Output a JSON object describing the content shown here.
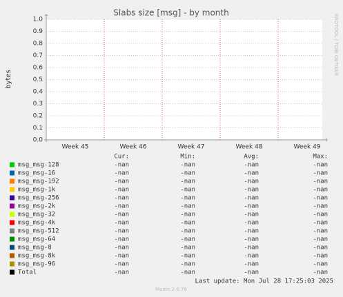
{
  "chart_data": {
    "type": "line",
    "title": "Slabs size [msg] - by month",
    "y_label": "bytes",
    "side_note": "RRDTOOL / TOBI OETIKER",
    "categories": [
      "Week 45",
      "Week 46",
      "Week 47",
      "Week 48",
      "Week 49"
    ],
    "ylim": [
      0,
      1
    ],
    "yticks": [
      {
        "value": 0,
        "label": "0.0"
      },
      0.1,
      0.2,
      0.3,
      0.4,
      0.5,
      0.6,
      0.7,
      0.8,
      0.9,
      {
        "value": 1,
        "label": "1.0"
      }
    ],
    "grid": true,
    "legend_headers": [
      "Cur:",
      "Min:",
      "Avg:",
      "Max:"
    ],
    "series": [
      {
        "name": "msg_msg-128",
        "color": "#00cc00",
        "values": [
          null,
          null,
          null,
          null,
          null
        ],
        "stats": [
          "-nan",
          "-nan",
          "-nan",
          "-nan"
        ]
      },
      {
        "name": "msg_msg-16",
        "color": "#0066b3",
        "values": [
          null,
          null,
          null,
          null,
          null
        ],
        "stats": [
          "-nan",
          "-nan",
          "-nan",
          "-nan"
        ]
      },
      {
        "name": "msg_msg-192",
        "color": "#ff8000",
        "values": [
          null,
          null,
          null,
          null,
          null
        ],
        "stats": [
          "-nan",
          "-nan",
          "-nan",
          "-nan"
        ]
      },
      {
        "name": "msg_msg-1k",
        "color": "#ffcc00",
        "values": [
          null,
          null,
          null,
          null,
          null
        ],
        "stats": [
          "-nan",
          "-nan",
          "-nan",
          "-nan"
        ]
      },
      {
        "name": "msg_msg-256",
        "color": "#330099",
        "values": [
          null,
          null,
          null,
          null,
          null
        ],
        "stats": [
          "-nan",
          "-nan",
          "-nan",
          "-nan"
        ]
      },
      {
        "name": "msg_msg-2k",
        "color": "#990099",
        "values": [
          null,
          null,
          null,
          null,
          null
        ],
        "stats": [
          "-nan",
          "-nan",
          "-nan",
          "-nan"
        ]
      },
      {
        "name": "msg_msg-32",
        "color": "#ccff00",
        "values": [
          null,
          null,
          null,
          null,
          null
        ],
        "stats": [
          "-nan",
          "-nan",
          "-nan",
          "-nan"
        ]
      },
      {
        "name": "msg_msg-4k",
        "color": "#ff0000",
        "values": [
          null,
          null,
          null,
          null,
          null
        ],
        "stats": [
          "-nan",
          "-nan",
          "-nan",
          "-nan"
        ]
      },
      {
        "name": "msg_msg-512",
        "color": "#808080",
        "values": [
          null,
          null,
          null,
          null,
          null
        ],
        "stats": [
          "-nan",
          "-nan",
          "-nan",
          "-nan"
        ]
      },
      {
        "name": "msg_msg-64",
        "color": "#008f00",
        "values": [
          null,
          null,
          null,
          null,
          null
        ],
        "stats": [
          "-nan",
          "-nan",
          "-nan",
          "-nan"
        ]
      },
      {
        "name": "msg_msg-8",
        "color": "#00487d",
        "values": [
          null,
          null,
          null,
          null,
          null
        ],
        "stats": [
          "-nan",
          "-nan",
          "-nan",
          "-nan"
        ]
      },
      {
        "name": "msg_msg-8k",
        "color": "#b35a00",
        "values": [
          null,
          null,
          null,
          null,
          null
        ],
        "stats": [
          "-nan",
          "-nan",
          "-nan",
          "-nan"
        ]
      },
      {
        "name": "msg_msg-96",
        "color": "#b38f00",
        "values": [
          null,
          null,
          null,
          null,
          null
        ],
        "stats": [
          "-nan",
          "-nan",
          "-nan",
          "-nan"
        ]
      },
      {
        "name": "Total",
        "color": "#000000",
        "values": [
          null,
          null,
          null,
          null,
          null
        ],
        "stats": [
          "-nan",
          "-nan",
          "-nan",
          "-nan"
        ]
      }
    ],
    "last_update": "Last update: Mon Jul 28 17:25:03 2025",
    "footer": "Munin 2.0.76"
  }
}
